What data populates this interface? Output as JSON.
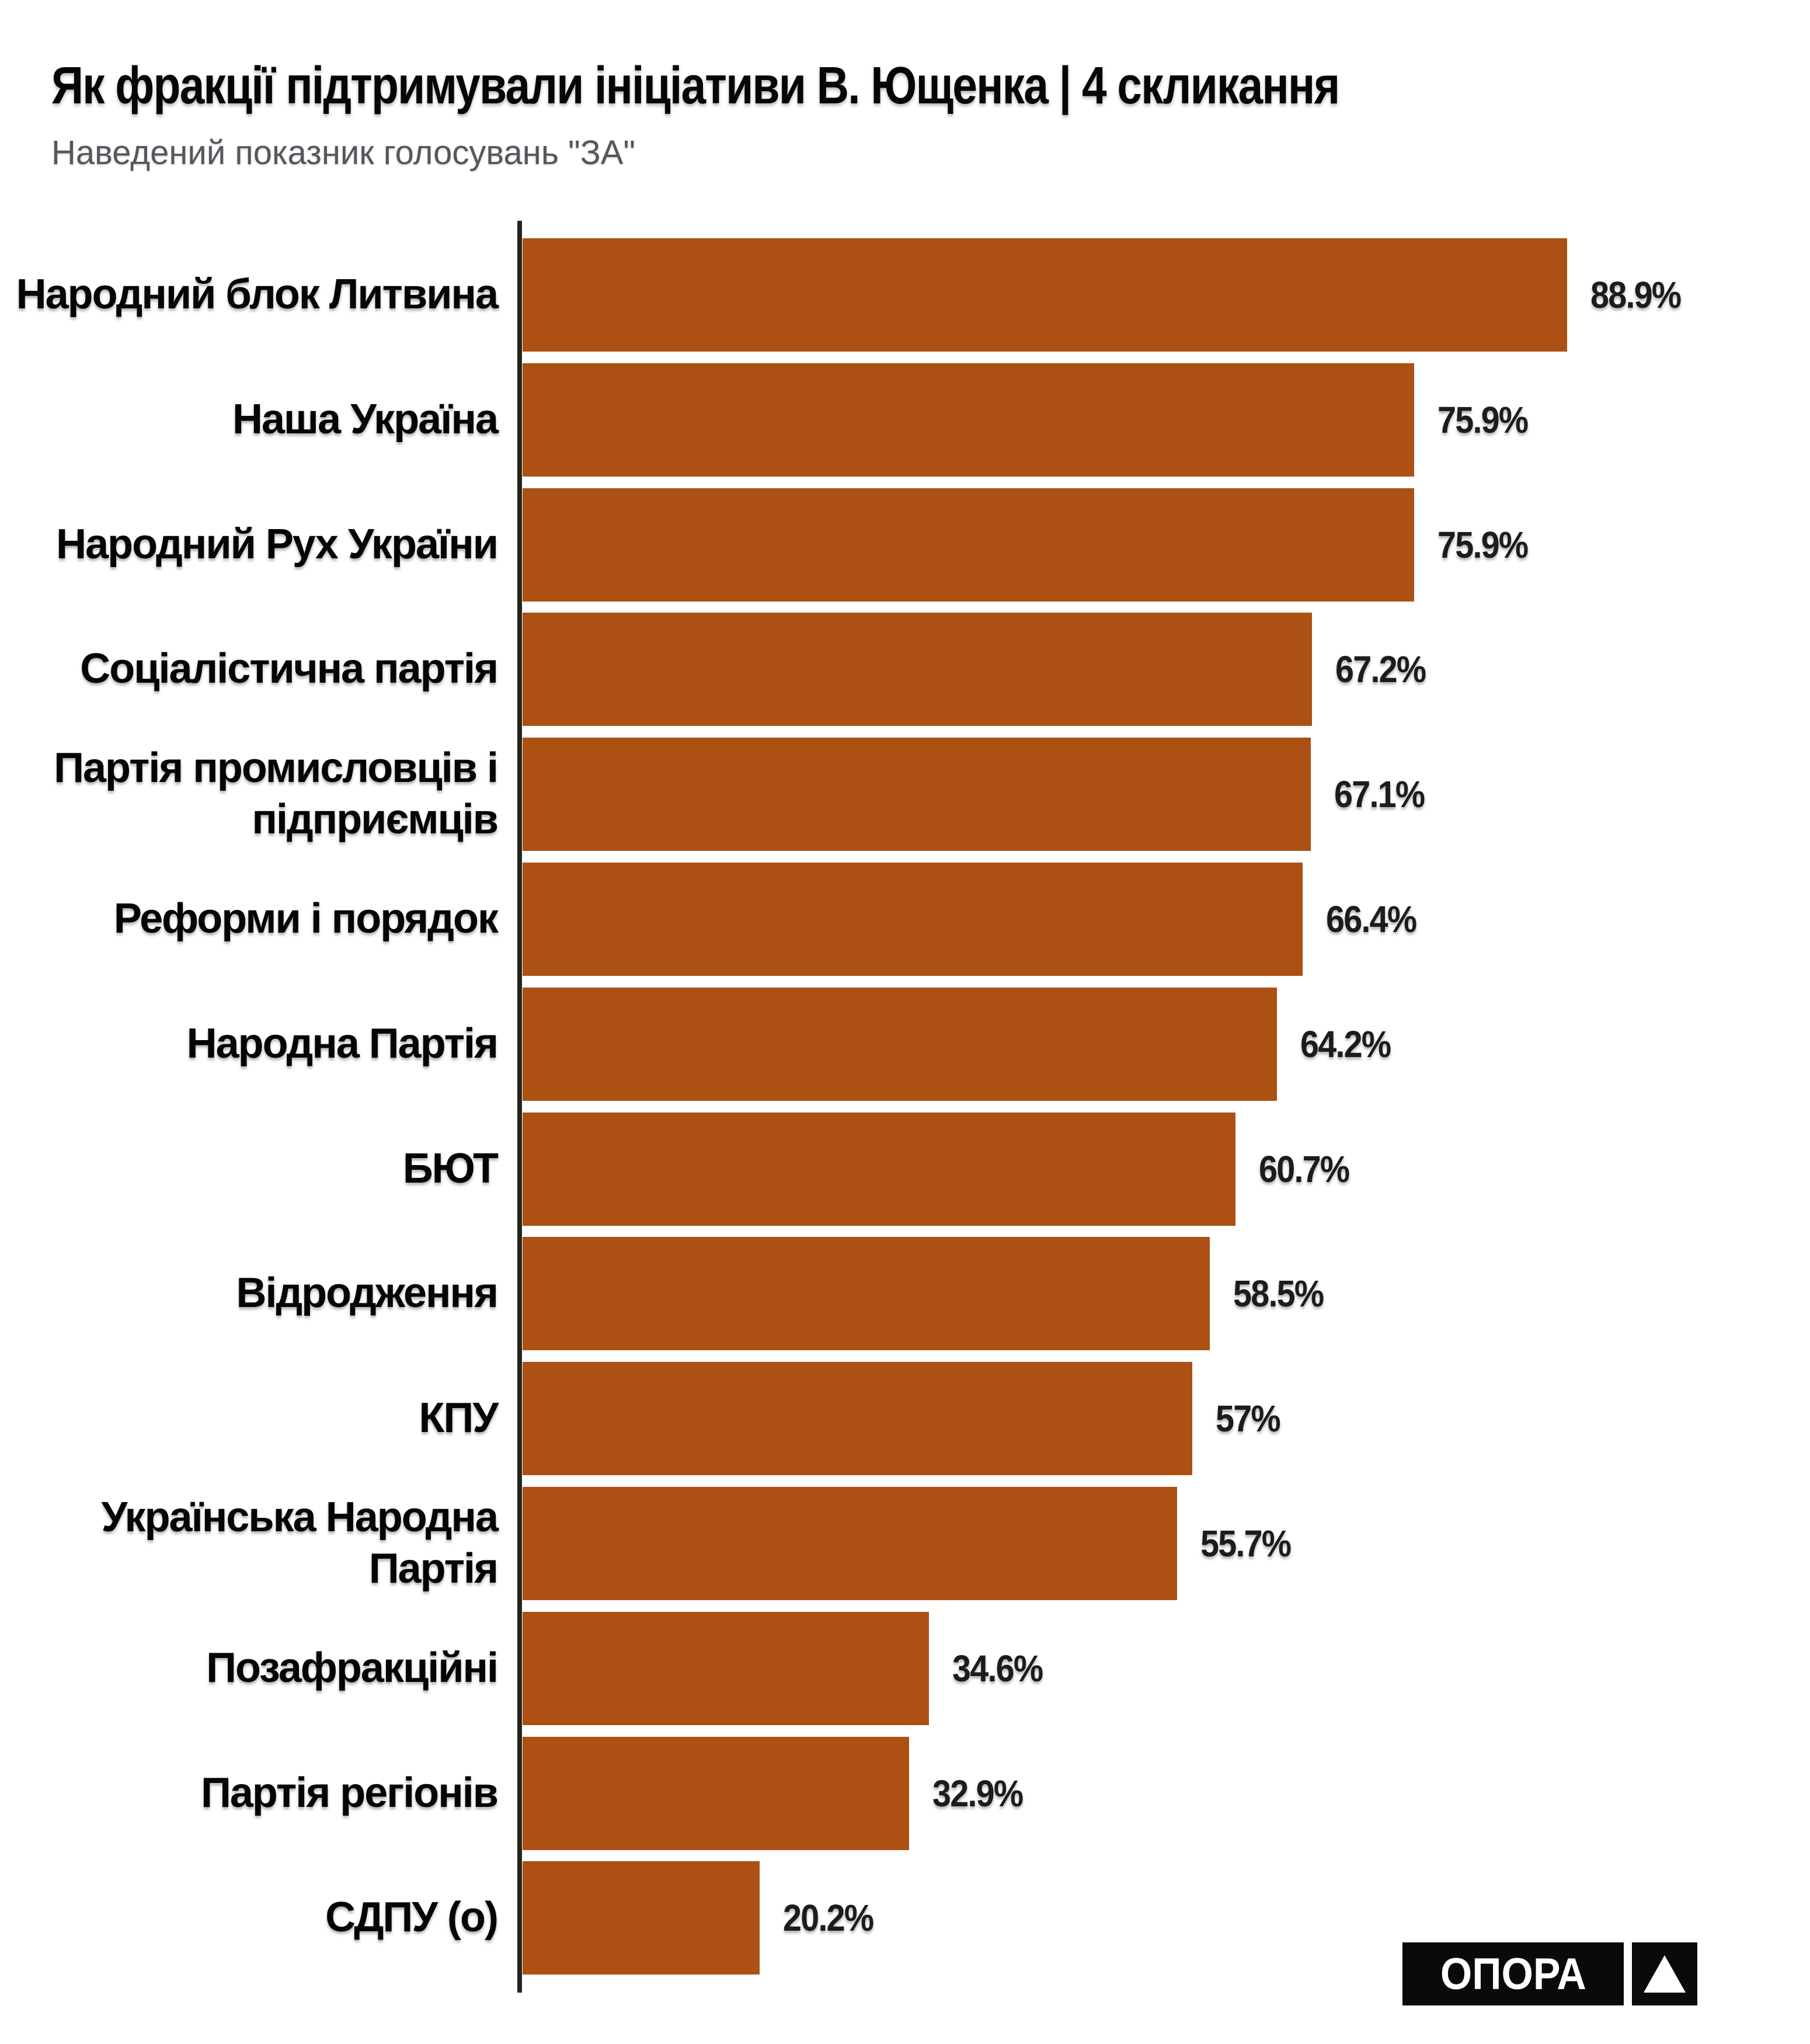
{
  "title": "Як фракції підтримували ініціативи В. Ющенка | 4 скликання",
  "subtitle": "Наведений показник голосувань \"ЗА\"",
  "colors": {
    "bar": "#ac5014",
    "axis": "#23261b",
    "title_text": "#060606",
    "subtitle_text": "#54585d",
    "value_text": "#1c1c1a",
    "logo_bg": "#0a0a0a",
    "logo_fg": "#ffffff"
  },
  "logo": {
    "text": "ОПОРА",
    "icon": "triangle-up-icon"
  },
  "chart_data": {
    "type": "bar",
    "orientation": "horizontal",
    "title": "Як фракції підтримували ініціативи В. Ющенка | 4 скликання",
    "subtitle": "Наведений показник голосувань \"ЗА\"",
    "unit": "%",
    "xlim": [
      0,
      100
    ],
    "grid": false,
    "legend": false,
    "categories": [
      "Народний блок Литвина",
      "Наша Україна",
      "Народний Рух України",
      "Соціалістична партія",
      "Партія промисловців і\nпідприємців",
      "Реформи і порядок",
      "Народна Партія",
      "БЮТ",
      "Відродження",
      "КПУ",
      "Українська Народна\nПартія",
      "Позафракційні",
      "Партія регіонів",
      "СДПУ (о)"
    ],
    "values": [
      88.9,
      75.9,
      75.9,
      67.2,
      67.1,
      66.4,
      64.2,
      60.7,
      58.5,
      57,
      55.7,
      34.6,
      32.9,
      20.2
    ],
    "value_labels": [
      "88.9%",
      "75.9%",
      "75.9%",
      "67.2%",
      "67.1%",
      "66.4%",
      "64.2%",
      "60.7%",
      "58.5%",
      "57%",
      "55.7%",
      "34.6%",
      "32.9%",
      "20.2%"
    ]
  }
}
